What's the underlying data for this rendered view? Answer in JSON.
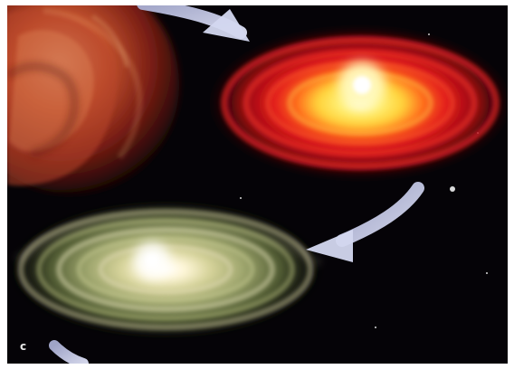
{
  "image": {
    "background_color": "#050307",
    "panel_label": "c",
    "colors": {
      "arrow": "#c7cbe6",
      "cloud": "#c24a2a",
      "red_disk": "#e0161c",
      "red_disk_core": "#fff7a0",
      "green_disk": "#9aa26a",
      "green_disk_core": "#ffffff"
    }
  }
}
